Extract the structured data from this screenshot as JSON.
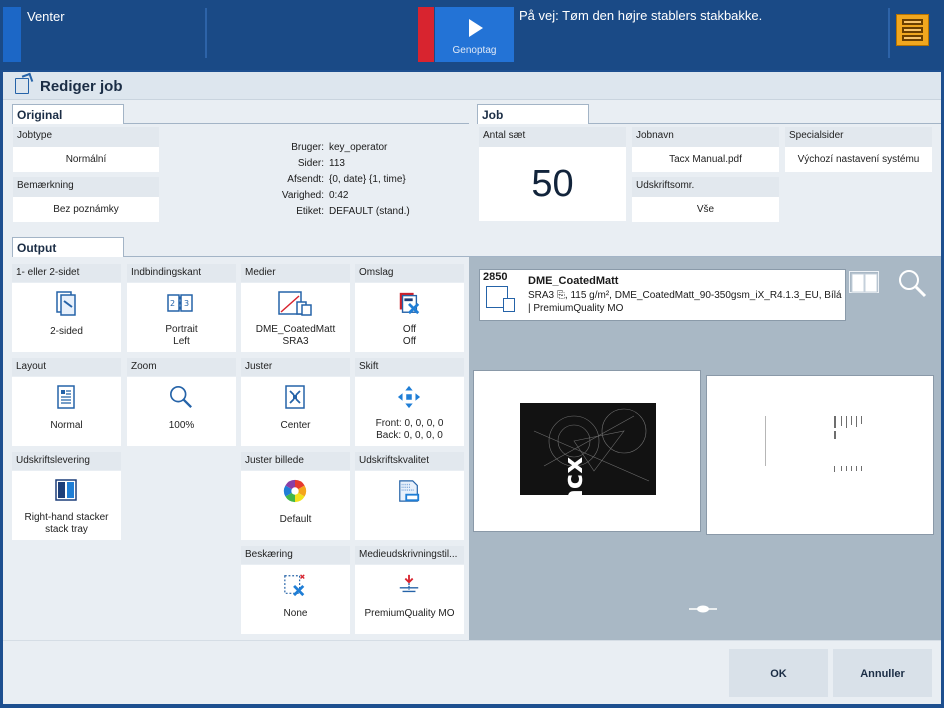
{
  "topbar": {
    "status": "Venter",
    "resume_label": "Genoptag",
    "message": "På vej: Tøm den højre stablers stakbakke.",
    "menu_icon": "stack-menu-icon"
  },
  "dialog": {
    "title": "Rediger job"
  },
  "original": {
    "tab": "Original",
    "jobtype_label": "Jobtype",
    "jobtype_value": "Normální",
    "remark_label": "Bemærkning",
    "remark_value": "Bez poznámky",
    "info": [
      {
        "key": "Bruger:",
        "value": "key_operator"
      },
      {
        "key": "Sider:",
        "value": "113"
      },
      {
        "key": "Afsendt:",
        "value": "{0, date} {1, time}"
      },
      {
        "key": "Varighed:",
        "value": "0:42"
      },
      {
        "key": "Etiket:",
        "value": "DEFAULT (stand.)"
      }
    ]
  },
  "job": {
    "tab": "Job",
    "sets_label": "Antal sæt",
    "sets_value": "50",
    "jobname_label": "Jobnavn",
    "jobname_value": "Tacx Manual.pdf",
    "special_label": "Specialsider",
    "special_value": "Výchozí nastavení systému",
    "area_label": "Udskriftsomr.",
    "area_value": "Vše"
  },
  "output": {
    "tab": "Output",
    "tiles": {
      "sides": {
        "label": "1- eller 2-sidet",
        "v1": "2-sided",
        "v2": ""
      },
      "binding": {
        "label": "Indbindingskant",
        "v1": "Portrait",
        "v2": "Left"
      },
      "media": {
        "label": "Medier",
        "v1": "DME_CoatedMatt",
        "v2": "SRA3"
      },
      "cover": {
        "label": "Omslag",
        "v1": "Off",
        "v2": "Off"
      },
      "layout": {
        "label": "Layout",
        "v1": "Normal",
        "v2": ""
      },
      "zoom": {
        "label": "Zoom",
        "v1": "100%",
        "v2": ""
      },
      "adjust": {
        "label": "Juster",
        "v1": "Center",
        "v2": ""
      },
      "shift": {
        "label": "Skift",
        "v1": "Front: 0, 0, 0, 0",
        "v2": "Back: 0, 0, 0, 0"
      },
      "delivery": {
        "label": "Udskriftslevering",
        "v1": "Right-hand stacker",
        "v2": "stack tray"
      },
      "image": {
        "label": "Juster billede",
        "v1": "Default",
        "v2": ""
      },
      "quality": {
        "label": "Udskriftskvalitet",
        "v1": "",
        "v2": ""
      },
      "crop": {
        "label": "Beskæring",
        "v1": "None",
        "v2": ""
      },
      "media_print": {
        "label": "Medieudskrivningstil...",
        "v1": "PremiumQuality MO",
        "v2": ""
      }
    }
  },
  "preview": {
    "tray": "2850",
    "media_name": "DME_CoatedMatt",
    "media_desc": "SRA3 ⎘, 115 g/m², DME_CoatedMatt_90-350gsm_iX_R4.1.3_EU, Bílá | PremiumQuality MO",
    "cover_brand": "Tacx"
  },
  "buttons": {
    "ok": "OK",
    "cancel": "Annuller"
  }
}
